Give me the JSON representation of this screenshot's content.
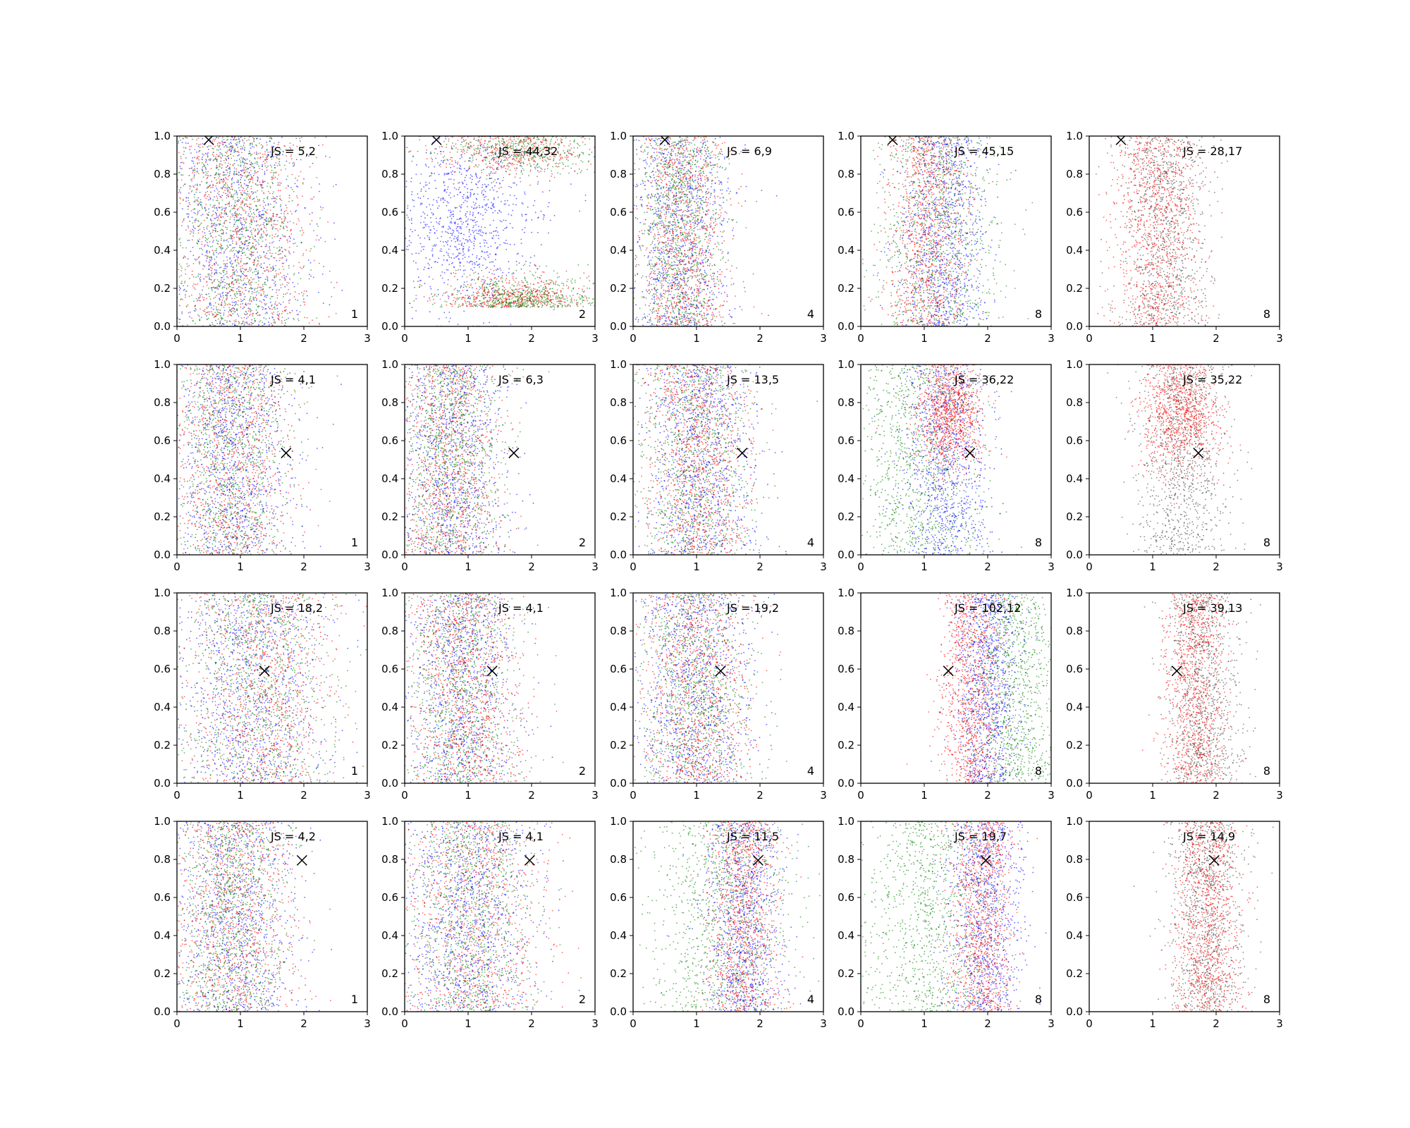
{
  "chart_data": {
    "type": "scatter",
    "layout": {
      "rows": 4,
      "cols": 5
    },
    "xlim": [
      0,
      3
    ],
    "ylim": [
      0,
      1
    ],
    "xticks": [
      "0",
      "1",
      "2",
      "3"
    ],
    "yticks": [
      "0.0",
      "0.2",
      "0.4",
      "0.6",
      "0.8",
      "1.0"
    ],
    "colors": {
      "red": "#ff0000",
      "green": "#008000",
      "blue": "#0000ff",
      "black": "#404040",
      "marker": "#000000"
    },
    "rows": [
      {
        "marker": {
          "x": 0.5,
          "y": 0.98
        },
        "panels": [
          {
            "js": "JS = 5,2",
            "n": "1",
            "dist": [
              {
                "color": "blue",
                "cx": 0.95,
                "sx": 0.55
              },
              {
                "color": "red",
                "cx": 1.0,
                "sx": 0.6
              },
              {
                "color": "green",
                "cx": 0.9,
                "sx": 0.55
              }
            ]
          },
          {
            "js": "JS = 44,32",
            "n": "2",
            "dist": [
              {
                "color": "blue",
                "cx": 0.9,
                "sx": 0.6,
                "yBias": "mid"
              },
              {
                "color": "red",
                "cx": 1.7,
                "sx": 0.55,
                "yBias": "ends"
              },
              {
                "color": "green",
                "cx": 1.9,
                "sx": 0.6,
                "yBias": "ends"
              }
            ]
          },
          {
            "js": "JS = 6,9",
            "n": "4",
            "dist": [
              {
                "color": "blue",
                "cx": 0.75,
                "sx": 0.4
              },
              {
                "color": "red",
                "cx": 0.8,
                "sx": 0.35
              },
              {
                "color": "green",
                "cx": 0.75,
                "sx": 0.35
              }
            ]
          },
          {
            "js": "JS = 45,15",
            "n": "8",
            "dist": [
              {
                "color": "green",
                "cx": 1.2,
                "sx": 0.5
              },
              {
                "color": "blue",
                "cx": 1.3,
                "sx": 0.35
              },
              {
                "color": "red",
                "cx": 1.05,
                "sx": 0.3
              }
            ]
          },
          {
            "js": "JS = 28,17",
            "n": "8",
            "dist": [
              {
                "color": "black",
                "cx": 1.2,
                "sx": 0.35
              },
              {
                "color": "red",
                "cx": 1.05,
                "sx": 0.33
              }
            ]
          }
        ]
      },
      {
        "marker": {
          "x": 1.72,
          "y": 0.535
        },
        "panels": [
          {
            "js": "JS = 4,1",
            "n": "1",
            "dist": [
              {
                "color": "green",
                "cx": 0.85,
                "sx": 0.45
              },
              {
                "color": "red",
                "cx": 0.85,
                "sx": 0.5
              },
              {
                "color": "blue",
                "cx": 0.9,
                "sx": 0.5
              }
            ]
          },
          {
            "js": "JS = 6,3",
            "n": "2",
            "dist": [
              {
                "color": "blue",
                "cx": 0.75,
                "sx": 0.4
              },
              {
                "color": "red",
                "cx": 0.7,
                "sx": 0.4
              },
              {
                "color": "green",
                "cx": 0.75,
                "sx": 0.4
              }
            ]
          },
          {
            "js": "JS = 13,5",
            "n": "4",
            "dist": [
              {
                "color": "green",
                "cx": 1.0,
                "sx": 0.45
              },
              {
                "color": "blue",
                "cx": 1.05,
                "sx": 0.45
              },
              {
                "color": "red",
                "cx": 1.0,
                "sx": 0.4
              }
            ]
          },
          {
            "js": "JS = 36,22",
            "n": "8",
            "dist": [
              {
                "color": "green",
                "cx": 0.9,
                "sx": 0.5
              },
              {
                "color": "blue",
                "cx": 1.35,
                "sx": 0.35
              },
              {
                "color": "red",
                "cx": 1.4,
                "sx": 0.25,
                "yBias": "top"
              }
            ]
          },
          {
            "js": "JS = 35,22",
            "n": "8",
            "dist": [
              {
                "color": "black",
                "cx": 1.45,
                "sx": 0.35
              },
              {
                "color": "red",
                "cx": 1.45,
                "sx": 0.3,
                "yBias": "top"
              }
            ]
          }
        ]
      },
      {
        "marker": {
          "x": 1.38,
          "y": 0.59
        },
        "panels": [
          {
            "js": "JS = 18,2",
            "n": "1",
            "dist": [
              {
                "color": "green",
                "cx": 1.3,
                "sx": 0.6
              },
              {
                "color": "blue",
                "cx": 1.2,
                "sx": 0.6
              },
              {
                "color": "red",
                "cx": 1.3,
                "sx": 0.6
              }
            ]
          },
          {
            "js": "JS = 4,1",
            "n": "2",
            "dist": [
              {
                "color": "green",
                "cx": 0.9,
                "sx": 0.45
              },
              {
                "color": "blue",
                "cx": 0.9,
                "sx": 0.45
              },
              {
                "color": "red",
                "cx": 0.95,
                "sx": 0.45
              }
            ]
          },
          {
            "js": "JS = 19,2",
            "n": "4",
            "dist": [
              {
                "color": "green",
                "cx": 1.0,
                "sx": 0.45
              },
              {
                "color": "blue",
                "cx": 0.95,
                "sx": 0.45
              },
              {
                "color": "red",
                "cx": 1.0,
                "sx": 0.45
              }
            ]
          },
          {
            "js": "JS = 102,12",
            "n": "8",
            "dist": [
              {
                "color": "green",
                "cx": 2.4,
                "sx": 0.35
              },
              {
                "color": "blue",
                "cx": 2.0,
                "sx": 0.25
              },
              {
                "color": "red",
                "cx": 1.75,
                "sx": 0.25
              }
            ]
          },
          {
            "js": "JS = 39,13",
            "n": "8",
            "dist": [
              {
                "color": "black",
                "cx": 1.8,
                "sx": 0.3
              },
              {
                "color": "red",
                "cx": 1.65,
                "sx": 0.25
              }
            ]
          }
        ]
      },
      {
        "marker": {
          "x": 1.97,
          "y": 0.795
        },
        "panels": [
          {
            "js": "JS = 4,2",
            "n": "1",
            "dist": [
              {
                "color": "blue",
                "cx": 0.9,
                "sx": 0.5
              },
              {
                "color": "red",
                "cx": 0.85,
                "sx": 0.5
              },
              {
                "color": "green",
                "cx": 0.85,
                "sx": 0.45
              }
            ]
          },
          {
            "js": "JS = 4,1",
            "n": "2",
            "dist": [
              {
                "color": "red",
                "cx": 1.05,
                "sx": 0.55
              },
              {
                "color": "green",
                "cx": 1.0,
                "sx": 0.5
              },
              {
                "color": "blue",
                "cx": 1.0,
                "sx": 0.55
              }
            ]
          },
          {
            "js": "JS = 11,5",
            "n": "4",
            "dist": [
              {
                "color": "green",
                "cx": 1.35,
                "sx": 0.6
              },
              {
                "color": "blue",
                "cx": 1.75,
                "sx": 0.3
              },
              {
                "color": "red",
                "cx": 1.75,
                "sx": 0.28
              }
            ]
          },
          {
            "js": "JS = 19,7",
            "n": "8",
            "dist": [
              {
                "color": "green",
                "cx": 1.05,
                "sx": 0.55
              },
              {
                "color": "blue",
                "cx": 1.95,
                "sx": 0.3
              },
              {
                "color": "red",
                "cx": 1.9,
                "sx": 0.25
              }
            ]
          },
          {
            "js": "JS = 14,9",
            "n": "8",
            "dist": [
              {
                "color": "black",
                "cx": 1.85,
                "sx": 0.3
              },
              {
                "color": "red",
                "cx": 1.85,
                "sx": 0.25
              }
            ]
          }
        ]
      }
    ]
  }
}
